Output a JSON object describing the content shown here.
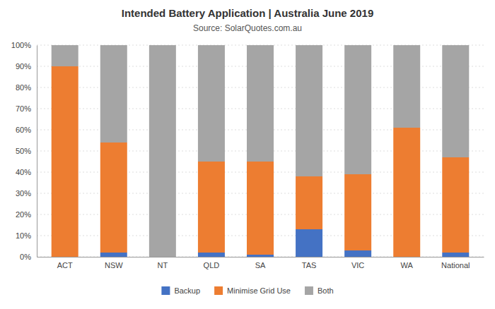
{
  "chart_data": {
    "type": "bar",
    "title": "Intended Battery Application | Australia June 2019",
    "subtitle": "Source: SolarQuotes.com.au",
    "categories": [
      "ACT",
      "NSW",
      "NT",
      "QLD",
      "SA",
      "TAS",
      "VIC",
      "WA",
      "National"
    ],
    "series": [
      {
        "name": "Backup",
        "color": "#4472C4",
        "values": [
          0,
          2,
          0,
          2,
          1,
          13,
          3,
          0,
          2
        ]
      },
      {
        "name": "Minimise Grid Use",
        "color": "#ED7D31",
        "values": [
          90,
          52,
          0,
          43,
          44,
          25,
          36,
          61,
          45
        ]
      },
      {
        "name": "Both",
        "color": "#A5A5A5",
        "values": [
          10,
          46,
          100,
          55,
          55,
          62,
          61,
          39,
          53
        ]
      }
    ],
    "stacked": true,
    "ylim": [
      0,
      100
    ],
    "yticks": [
      {
        "value": 0,
        "label": "0%"
      },
      {
        "value": 10,
        "label": "10%"
      },
      {
        "value": 20,
        "label": "20%"
      },
      {
        "value": 30,
        "label": "30%"
      },
      {
        "value": 40,
        "label": "40%"
      },
      {
        "value": 50,
        "label": "50%"
      },
      {
        "value": 60,
        "label": "60%"
      },
      {
        "value": 70,
        "label": "70%"
      },
      {
        "value": 80,
        "label": "80%"
      },
      {
        "value": 90,
        "label": "90%"
      },
      {
        "value": 100,
        "label": "100%"
      }
    ],
    "grid": true,
    "legend": "bottom"
  }
}
